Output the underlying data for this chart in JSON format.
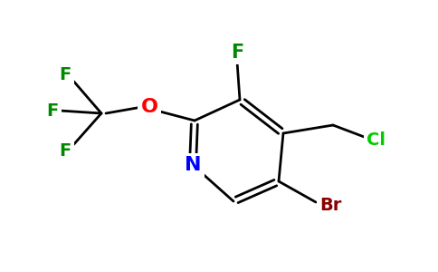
{
  "bg_color": "#ffffff",
  "atom_colors": {
    "N": "#0000ff",
    "O": "#ff0000",
    "Br": "#8b0000",
    "Cl": "#00cc00",
    "F": "#008800",
    "C": "#000000"
  },
  "bond_color": "#000000",
  "bond_width": 2.0
}
